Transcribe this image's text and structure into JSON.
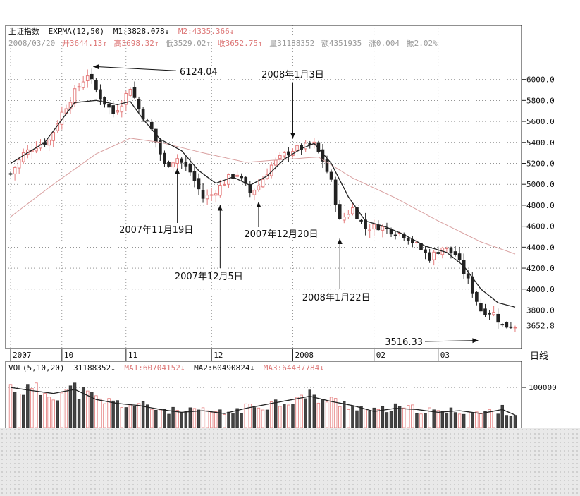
{
  "header": {
    "row1": {
      "index_name": "上证指数",
      "indicator": "EXPMA(12,50)",
      "m1": "M1:3828.078↓",
      "m2": "M2:4335.366↓"
    },
    "row2": {
      "date": "2008/03/20",
      "open": "开3644.13↑",
      "high": "高3698.32↑",
      "low": "低3529.02↑",
      "close": "收3652.75↑",
      "volume": "量31188352",
      "amount": "额4351935",
      "swing": "涨0.004",
      "amp": "振2.02%"
    },
    "vol": {
      "label": "VOL(5,10,20)",
      "value": "31188352↓",
      "ma1": "MA1:60704152↓",
      "ma2": "MA2:60490824↓",
      "ma3": "MA3:64437784↓"
    },
    "period": "日线"
  },
  "colors": {
    "up": "#e47b7b",
    "down": "#222222",
    "ma_fast": "#222222",
    "ma_slow": "#d9a0a0",
    "grid": "#555555"
  },
  "chart_data": {
    "type": "candlestick",
    "title": "上证指数",
    "y_ticks": [
      "6000.0",
      "5800.0",
      "5600.0",
      "5400.0",
      "5200.0",
      "5000.0",
      "4800.0",
      "4600.0",
      "4400.0",
      "4200.0",
      "4000.0",
      "3800.0",
      "3652.8"
    ],
    "y_tick_values": [
      6000,
      5800,
      5600,
      5400,
      5200,
      5000,
      4800,
      4600,
      4400,
      4200,
      4000,
      3800,
      3652.8
    ],
    "ylim": [
      3460,
      6260
    ],
    "x_ticks": [
      "2007",
      "10",
      "11",
      "12",
      "2008",
      "02",
      "03"
    ],
    "x_tick_index": [
      0,
      12,
      27,
      47,
      66,
      85,
      100
    ],
    "n_days": 119,
    "vol_ticks": [
      "100000"
    ],
    "vol_tick_values": [
      100000
    ],
    "vol_range": [
      0,
      130000
    ],
    "annotations": [
      {
        "text": "6124.04",
        "value": 6124.04,
        "day": 18
      },
      {
        "text": "2008年1月3日",
        "value": 5410,
        "day": 66
      },
      {
        "text": "2007年11月19日",
        "value": 5180,
        "day": 39
      },
      {
        "text": "2007年12月20日",
        "value": 4860,
        "day": 58
      },
      {
        "text": "2007年12月5日",
        "value": 4830,
        "day": 49
      },
      {
        "text": "2008年1月22日",
        "value": 4510,
        "day": 77
      },
      {
        "text": "3516.33",
        "value": 3516.33,
        "day": 110
      }
    ],
    "close_keypoints": [
      [
        0,
        5100
      ],
      [
        3,
        5290
      ],
      [
        6,
        5370
      ],
      [
        9,
        5420
      ],
      [
        12,
        5680
      ],
      [
        15,
        5880
      ],
      [
        18,
        6050
      ],
      [
        21,
        5830
      ],
      [
        24,
        5680
      ],
      [
        26,
        5780
      ],
      [
        28,
        5930
      ],
      [
        30,
        5720
      ],
      [
        33,
        5520
      ],
      [
        36,
        5180
      ],
      [
        39,
        5250
      ],
      [
        42,
        5120
      ],
      [
        45,
        4870
      ],
      [
        47,
        4900
      ],
      [
        49,
        4980
      ],
      [
        51,
        5060
      ],
      [
        53,
        5100
      ],
      [
        56,
        4920
      ],
      [
        58,
        4990
      ],
      [
        61,
        5180
      ],
      [
        64,
        5280
      ],
      [
        66,
        5330
      ],
      [
        69,
        5360
      ],
      [
        71,
        5380
      ],
      [
        73,
        5230
      ],
      [
        75,
        5020
      ],
      [
        77,
        4650
      ],
      [
        80,
        4770
      ],
      [
        83,
        4580
      ],
      [
        86,
        4600
      ],
      [
        89,
        4560
      ],
      [
        92,
        4520
      ],
      [
        95,
        4420
      ],
      [
        98,
        4300
      ],
      [
        101,
        4400
      ],
      [
        104,
        4330
      ],
      [
        107,
        4080
      ],
      [
        110,
        3800
      ],
      [
        113,
        3770
      ],
      [
        115,
        3650
      ],
      [
        118,
        3652.75
      ]
    ],
    "ma_fast_keypoints": [
      [
        0,
        5200
      ],
      [
        8,
        5400
      ],
      [
        15,
        5780
      ],
      [
        20,
        5800
      ],
      [
        25,
        5760
      ],
      [
        28,
        5790
      ],
      [
        31,
        5620
      ],
      [
        35,
        5430
      ],
      [
        40,
        5320
      ],
      [
        44,
        5130
      ],
      [
        48,
        5010
      ],
      [
        52,
        5070
      ],
      [
        56,
        4990
      ],
      [
        60,
        5080
      ],
      [
        64,
        5240
      ],
      [
        68,
        5340
      ],
      [
        71,
        5390
      ],
      [
        75,
        5200
      ],
      [
        79,
        4880
      ],
      [
        83,
        4650
      ],
      [
        88,
        4590
      ],
      [
        92,
        4520
      ],
      [
        97,
        4410
      ],
      [
        102,
        4350
      ],
      [
        106,
        4220
      ],
      [
        110,
        4000
      ],
      [
        114,
        3870
      ],
      [
        118,
        3828
      ]
    ],
    "ma_slow_keypoints": [
      [
        0,
        4690
      ],
      [
        10,
        5000
      ],
      [
        20,
        5290
      ],
      [
        28,
        5440
      ],
      [
        35,
        5400
      ],
      [
        45,
        5300
      ],
      [
        55,
        5210
      ],
      [
        65,
        5240
      ],
      [
        72,
        5260
      ],
      [
        80,
        5060
      ],
      [
        90,
        4870
      ],
      [
        100,
        4650
      ],
      [
        110,
        4450
      ],
      [
        118,
        4335
      ]
    ],
    "volume_keypoints": [
      [
        0,
        100000
      ],
      [
        5,
        92000
      ],
      [
        10,
        85000
      ],
      [
        15,
        95000
      ],
      [
        20,
        70000
      ],
      [
        25,
        60000
      ],
      [
        30,
        55000
      ],
      [
        35,
        45000
      ],
      [
        40,
        38000
      ],
      [
        45,
        42000
      ],
      [
        50,
        35000
      ],
      [
        55,
        48000
      ],
      [
        60,
        58000
      ],
      [
        65,
        68000
      ],
      [
        70,
        78000
      ],
      [
        75,
        65000
      ],
      [
        80,
        55000
      ],
      [
        85,
        40000
      ],
      [
        90,
        48000
      ],
      [
        95,
        45000
      ],
      [
        100,
        38000
      ],
      [
        105,
        42000
      ],
      [
        110,
        35000
      ],
      [
        115,
        45000
      ],
      [
        118,
        31188
      ]
    ]
  }
}
